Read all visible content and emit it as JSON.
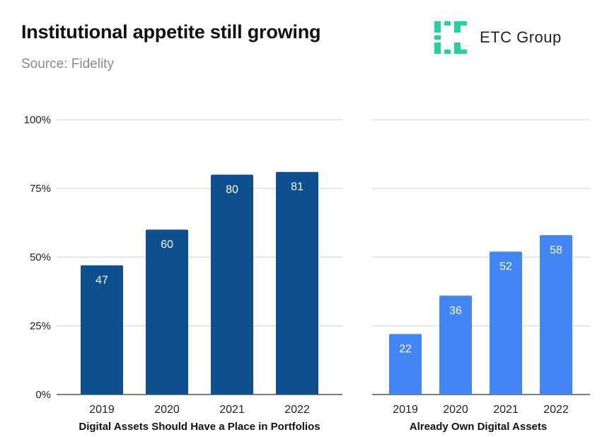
{
  "header": {
    "title": "Institutional appetite still growing",
    "source": "Source: Fidelity"
  },
  "logo": {
    "icon": "etc-group-logo-icon",
    "text": "ETC Group",
    "color": "#23d39a"
  },
  "chart_data": [
    {
      "type": "bar",
      "title": "Digital Assets Should Have a Place in Portfolios",
      "xlabel": "Digital Assets Should Have a Place in Portfolios",
      "ylabel": "",
      "categories": [
        "2019",
        "2020",
        "2021",
        "2022"
      ],
      "values": [
        47,
        60,
        80,
        81
      ],
      "data_labels": [
        "47",
        "60",
        "80",
        "81"
      ],
      "ylim": [
        0,
        100
      ],
      "yticks": [
        0,
        25,
        50,
        75,
        100
      ],
      "ytick_labels": [
        "0%",
        "25%",
        "50%",
        "75%",
        "100%"
      ],
      "color": "#0d4f8f",
      "grid": true
    },
    {
      "type": "bar",
      "title": "Already Own Digital Assets",
      "xlabel": "Already Own Digital Assets",
      "ylabel": "",
      "categories": [
        "2019",
        "2020",
        "2021",
        "2022"
      ],
      "values": [
        22,
        36,
        52,
        58
      ],
      "data_labels": [
        "22",
        "36",
        "52",
        "58"
      ],
      "ylim": [
        0,
        100
      ],
      "yticks": [
        0,
        25,
        50,
        75,
        100
      ],
      "color": "#4285f4",
      "grid": true
    }
  ]
}
